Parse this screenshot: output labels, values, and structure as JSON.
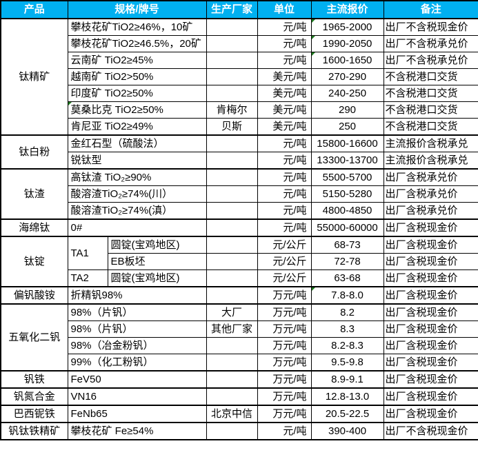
{
  "colors": {
    "header_bg": "#00B0F0",
    "header_text": "#FFFFFF",
    "border": "#000000",
    "comment_marker": "#1E7B1E"
  },
  "table": {
    "header": [
      "产品",
      "规格/牌号",
      "生产厂家",
      "单位",
      "主流报价",
      "备注"
    ],
    "groups": [
      {
        "product": "钛精矿",
        "rows": [
          {
            "spec": "攀枝花矿TiO2≥46%，10矿",
            "vendor": "",
            "unit": "元/吨",
            "price": "1965-2000",
            "note": "出厂不含税现金价",
            "price_marker": true
          },
          {
            "spec": "攀枝花矿TiO2≥46.5%，20矿",
            "vendor": "",
            "unit": "元/吨",
            "price": "1990-2050",
            "note": "出厂不含税承兑价",
            "price_marker": true
          },
          {
            "spec": "云南矿 TiO2≥45%",
            "vendor": "",
            "unit": "元/吨",
            "price": "1600-1650",
            "note": "出厂不含税承兑价",
            "price_marker": true
          },
          {
            "spec": "越南矿 TiO2>50%",
            "vendor": "",
            "unit": "美元/吨",
            "price": "270-290",
            "note": "不含税港口交货"
          },
          {
            "spec": "印度矿 TiO2≥50%",
            "vendor": "",
            "unit": "美元/吨",
            "price": "240-250",
            "note": "不含税港口交货"
          },
          {
            "spec": "莫桑比克 TiO2≥50%",
            "vendor": "肯梅尔",
            "unit": "美元/吨",
            "price": "290",
            "note": "不含税港口交货",
            "spec_marker": true
          },
          {
            "spec": "肯尼亚 TiO2≥49%",
            "vendor": "贝斯",
            "unit": "美元/吨",
            "price": "250",
            "note": "不含税港口交货"
          }
        ]
      },
      {
        "product": "钛白粉",
        "rows": [
          {
            "spec": "金红石型（硫酸法）",
            "vendor": "",
            "unit": "元/吨",
            "price": "15800-16600",
            "note": "主流报价含税承兑"
          },
          {
            "spec": "锐钛型",
            "vendor": "",
            "unit": "元/吨",
            "price": "13300-13700",
            "note": "主流报价含税承兑"
          }
        ]
      },
      {
        "product": "钛渣",
        "rows": [
          {
            "spec": "高钛渣 TiO₂≥90%",
            "vendor": "",
            "unit": "元/吨",
            "price": "5500-5700",
            "note": "出厂含税承兑价"
          },
          {
            "spec": "酸溶渣TiO₂≥74%(川）",
            "vendor": "",
            "unit": "元/吨",
            "price": "5150-5280",
            "note": "出厂含税承兑价"
          },
          {
            "spec": "酸溶渣TiO₂≥74%(滇）",
            "vendor": "",
            "unit": "元/吨",
            "price": "4800-4850",
            "note": "出厂含税承兑价"
          }
        ]
      },
      {
        "product": "海绵钛",
        "rows": [
          {
            "spec": "0#",
            "vendor": "",
            "unit": "元/吨",
            "price": "55000-60000",
            "note": "出厂含税现金价"
          }
        ]
      },
      {
        "product": "钛锭",
        "rows": [
          {
            "grade": "TA1",
            "grade_rows": 2,
            "spec": "圆锭(宝鸡地区)",
            "vendor": "",
            "unit": "元/公斤",
            "price": "68-73",
            "note": "出厂含税现金价"
          },
          {
            "grade_covered": true,
            "spec": "EB板坯",
            "vendor": "",
            "unit": "元/公斤",
            "price": "72-78",
            "note": "出厂含税现金价"
          },
          {
            "grade": "TA2",
            "grade_rows": 1,
            "spec": "圆锭(宝鸡地区)",
            "vendor": "",
            "unit": "元/公斤",
            "price": "63-68",
            "note": "出厂含税现金价"
          }
        ]
      },
      {
        "product": "偏钒酸铵",
        "rows": [
          {
            "spec": "折精钒98%",
            "vendor": "",
            "unit": "万元/吨",
            "price": "7.8-8.0",
            "note": "出厂含税现金价",
            "price_marker": true
          }
        ]
      },
      {
        "product": "五氧化二钒",
        "rows": [
          {
            "spec": "98%（片钒）",
            "vendor": "大厂",
            "unit": "万元/吨",
            "price": "8.2",
            "note": "出厂含税现金价"
          },
          {
            "spec": "98%（片钒）",
            "vendor": "其他厂家",
            "unit": "万元/吨",
            "price": "8.3",
            "note": "出厂含税现金价"
          },
          {
            "spec": "98%（冶金粉钒）",
            "vendor": "",
            "unit": "万元/吨",
            "price": "8.2-8.3",
            "note": "出厂含税现金价"
          },
          {
            "spec": "99%（化工粉钒）",
            "vendor": "",
            "unit": "万元/吨",
            "price": "9.5-9.8",
            "note": "出厂含税现金价"
          }
        ]
      },
      {
        "product": "钒铁",
        "rows": [
          {
            "spec": "FeV50",
            "vendor": "",
            "unit": "万元/吨",
            "price": "8.9-9.1",
            "note": "出厂含税现金价"
          }
        ]
      },
      {
        "product": "钒氮合金",
        "rows": [
          {
            "spec": "VN16",
            "vendor": "",
            "unit": "万元/吨",
            "price": "12.8-13.0",
            "note": "出厂含税现金价"
          }
        ]
      },
      {
        "product": "巴西铌铁",
        "rows": [
          {
            "spec": "FeNb65",
            "vendor": "北京中信",
            "unit": "万元/吨",
            "price": "20.5-22.5",
            "note": "出厂含税现金价"
          }
        ]
      },
      {
        "product": "钒钛铁精矿",
        "rows": [
          {
            "spec": "攀枝花矿 Fe≥54%",
            "vendor": "",
            "unit": "元/吨",
            "price": "390-400",
            "note": "出厂不含税现金价"
          }
        ]
      }
    ]
  }
}
